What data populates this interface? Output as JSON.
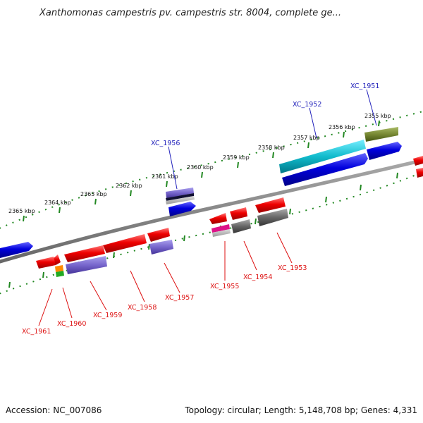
{
  "title": "Xanthomonas campestris pv. campestris str. 8004, complete ge...",
  "accession_label": "Accession: NC_007086",
  "topology_label": "Topology: circular; Length: 5,148,708 bp; Genes: 4,331",
  "ticks": [
    "2355 kbp",
    "2356 kbp",
    "2357 kbp",
    "2358 kbp",
    "2359 kbp",
    "2360 kbp",
    "2361 kbp",
    "2362 kbp",
    "2363 kbp",
    "2364 kbp",
    "2365 kbp"
  ],
  "genes_forward": [
    "XC_1951",
    "XC_1952",
    "XC_1956"
  ],
  "genes_reverse": [
    "XC_1953",
    "XC_1954",
    "XC_1955",
    "XC_1957",
    "XC_1958",
    "XC_1959",
    "XC_1960",
    "XC_1961"
  ],
  "colors": {
    "forward_gene": "#0000dd",
    "reverse_gene": "#ee0000",
    "backbone": "#888888",
    "tick": "#228822",
    "cyan_feature": "#11bbcc",
    "olive_feature": "#778833",
    "violet_feature": "#7766cc",
    "grey_feature": "#666666",
    "magenta_feature": "#dd1188",
    "orange_feature": "#ff8800",
    "green_feature": "#22aa22"
  }
}
